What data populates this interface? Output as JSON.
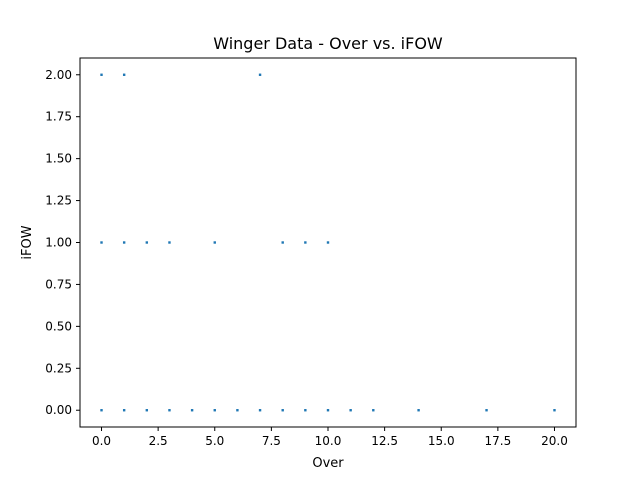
{
  "chart_data": {
    "type": "scatter",
    "title": "Winger Data - Over vs. iFOW",
    "xlabel": "Over",
    "ylabel": "iFOW",
    "xlim": [
      -0.95,
      20.95
    ],
    "ylim": [
      -0.1,
      2.1
    ],
    "xticks": [
      0.0,
      2.5,
      5.0,
      7.5,
      10.0,
      12.5,
      15.0,
      17.5,
      20.0
    ],
    "xtick_labels": [
      "0.0",
      "2.5",
      "5.0",
      "7.5",
      "10.0",
      "12.5",
      "15.0",
      "17.5",
      "20.0"
    ],
    "yticks": [
      0.0,
      0.25,
      0.5,
      0.75,
      1.0,
      1.25,
      1.5,
      1.75,
      2.0
    ],
    "ytick_labels": [
      "0.00",
      "0.25",
      "0.50",
      "0.75",
      "1.00",
      "1.25",
      "1.50",
      "1.75",
      "2.00"
    ],
    "grid": false,
    "marker_color": "#1f77b4",
    "points": [
      {
        "x": 0,
        "y": 2
      },
      {
        "x": 1,
        "y": 2
      },
      {
        "x": 7,
        "y": 2
      },
      {
        "x": 0,
        "y": 1
      },
      {
        "x": 1,
        "y": 1
      },
      {
        "x": 2,
        "y": 1
      },
      {
        "x": 3,
        "y": 1
      },
      {
        "x": 5,
        "y": 1
      },
      {
        "x": 8,
        "y": 1
      },
      {
        "x": 9,
        "y": 1
      },
      {
        "x": 10,
        "y": 1
      },
      {
        "x": 0,
        "y": 0
      },
      {
        "x": 1,
        "y": 0
      },
      {
        "x": 2,
        "y": 0
      },
      {
        "x": 3,
        "y": 0
      },
      {
        "x": 4,
        "y": 0
      },
      {
        "x": 5,
        "y": 0
      },
      {
        "x": 6,
        "y": 0
      },
      {
        "x": 7,
        "y": 0
      },
      {
        "x": 8,
        "y": 0
      },
      {
        "x": 9,
        "y": 0
      },
      {
        "x": 10,
        "y": 0
      },
      {
        "x": 11,
        "y": 0
      },
      {
        "x": 12,
        "y": 0
      },
      {
        "x": 14,
        "y": 0
      },
      {
        "x": 17,
        "y": 0
      },
      {
        "x": 20,
        "y": 0
      }
    ]
  }
}
